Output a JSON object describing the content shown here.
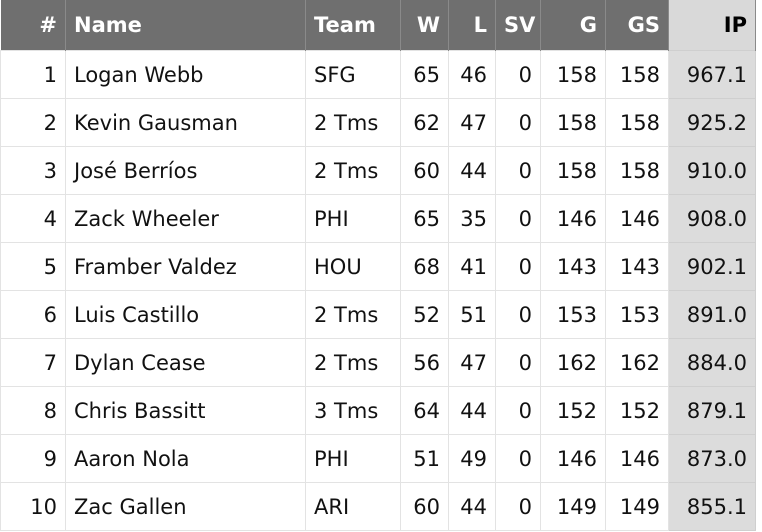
{
  "table": {
    "headers": [
      "#",
      "Name",
      "Team",
      "W",
      "L",
      "SV",
      "G",
      "GS",
      "IP"
    ],
    "rows": [
      [
        "1",
        "Logan Webb",
        "SFG",
        "65",
        "46",
        "0",
        "158",
        "158",
        "967.1"
      ],
      [
        "2",
        "Kevin Gausman",
        "2 Tms",
        "62",
        "47",
        "0",
        "158",
        "158",
        "925.2"
      ],
      [
        "3",
        "José Berríos",
        "2 Tms",
        "60",
        "44",
        "0",
        "158",
        "158",
        "910.0"
      ],
      [
        "4",
        "Zack Wheeler",
        "PHI",
        "65",
        "35",
        "0",
        "146",
        "146",
        "908.0"
      ],
      [
        "5",
        "Framber Valdez",
        "HOU",
        "68",
        "41",
        "0",
        "143",
        "143",
        "902.1"
      ],
      [
        "6",
        "Luis Castillo",
        "2 Tms",
        "52",
        "51",
        "0",
        "153",
        "153",
        "891.0"
      ],
      [
        "7",
        "Dylan Cease",
        "2 Tms",
        "56",
        "47",
        "0",
        "162",
        "162",
        "884.0"
      ],
      [
        "8",
        "Chris Bassitt",
        "3 Tms",
        "64",
        "44",
        "0",
        "152",
        "152",
        "879.1"
      ],
      [
        "9",
        "Aaron Nola",
        "PHI",
        "51",
        "49",
        "0",
        "146",
        "146",
        "873.0"
      ],
      [
        "10",
        "Zac Gallen",
        "ARI",
        "60",
        "44",
        "0",
        "149",
        "149",
        "855.1"
      ]
    ]
  }
}
